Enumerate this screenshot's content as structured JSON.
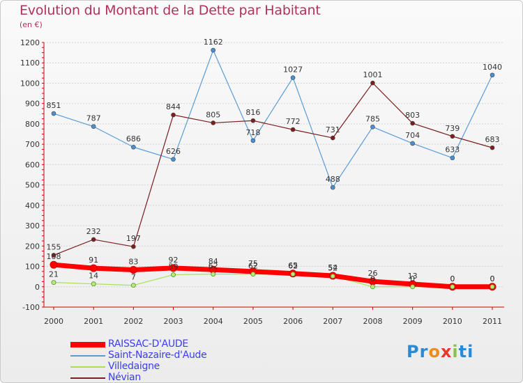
{
  "title": "Evolution du Montant de la Dette par Habitant",
  "unit": "(en €)",
  "logo_text": "Proxiti",
  "chart_data": {
    "type": "line",
    "title": "Evolution du Montant de la Dette par Habitant",
    "ylabel": "(en €)",
    "xlabel": "",
    "x": [
      "2000",
      "2001",
      "2002",
      "2003",
      "2004",
      "2005",
      "2006",
      "2007",
      "2008",
      "2009",
      "2010",
      "2011"
    ],
    "ylim": [
      -100,
      1200
    ],
    "yticks": [
      -100,
      0,
      100,
      200,
      300,
      400,
      500,
      600,
      700,
      800,
      900,
      1000,
      1100,
      1200
    ],
    "grid": "horizontal",
    "legend_position": "bottom-left",
    "series": [
      {
        "name": "RAISSAC-D'AUDE",
        "color": "#ff0000",
        "values": [
          108,
          91,
          83,
          92,
          84,
          75,
          65,
          54,
          26,
          13,
          0,
          0
        ]
      },
      {
        "name": "Saint-Nazaire-d'Aude",
        "color": "#5b9bd5",
        "values": [
          851,
          787,
          686,
          626,
          1162,
          718,
          1027,
          488,
          785,
          704,
          633,
          1040
        ]
      },
      {
        "name": "Villedaigne",
        "color": "#a6e05a",
        "values": [
          21,
          14,
          7,
          59,
          62,
          62,
          62,
          52,
          0,
          0,
          0,
          0
        ]
      },
      {
        "name": "Névian",
        "color": "#7a1e1e",
        "values": [
          155,
          232,
          197,
          844,
          805,
          816,
          772,
          731,
          1001,
          803,
          739,
          683
        ]
      }
    ],
    "data_labels": [
      {
        "series": 3,
        "labels": [
          "155",
          "232",
          "197",
          "844",
          "805",
          "816",
          "772",
          "731",
          "1001",
          "803",
          "739",
          "683"
        ]
      },
      {
        "series": 1,
        "labels": [
          "851",
          "787",
          "686",
          "626",
          "1162",
          "718",
          "1027",
          "488",
          "785",
          "704",
          "633",
          "1040"
        ]
      },
      {
        "series": 0,
        "labels": [
          "108",
          "91",
          "83",
          "92",
          "84",
          "75",
          "65",
          "54",
          "26",
          "13",
          "0",
          "0"
        ]
      },
      {
        "series": 2,
        "labels": [
          "21",
          "14",
          "7",
          "59",
          "62",
          "62",
          "62",
          "52",
          "0",
          "0",
          "0",
          "0"
        ]
      }
    ]
  }
}
